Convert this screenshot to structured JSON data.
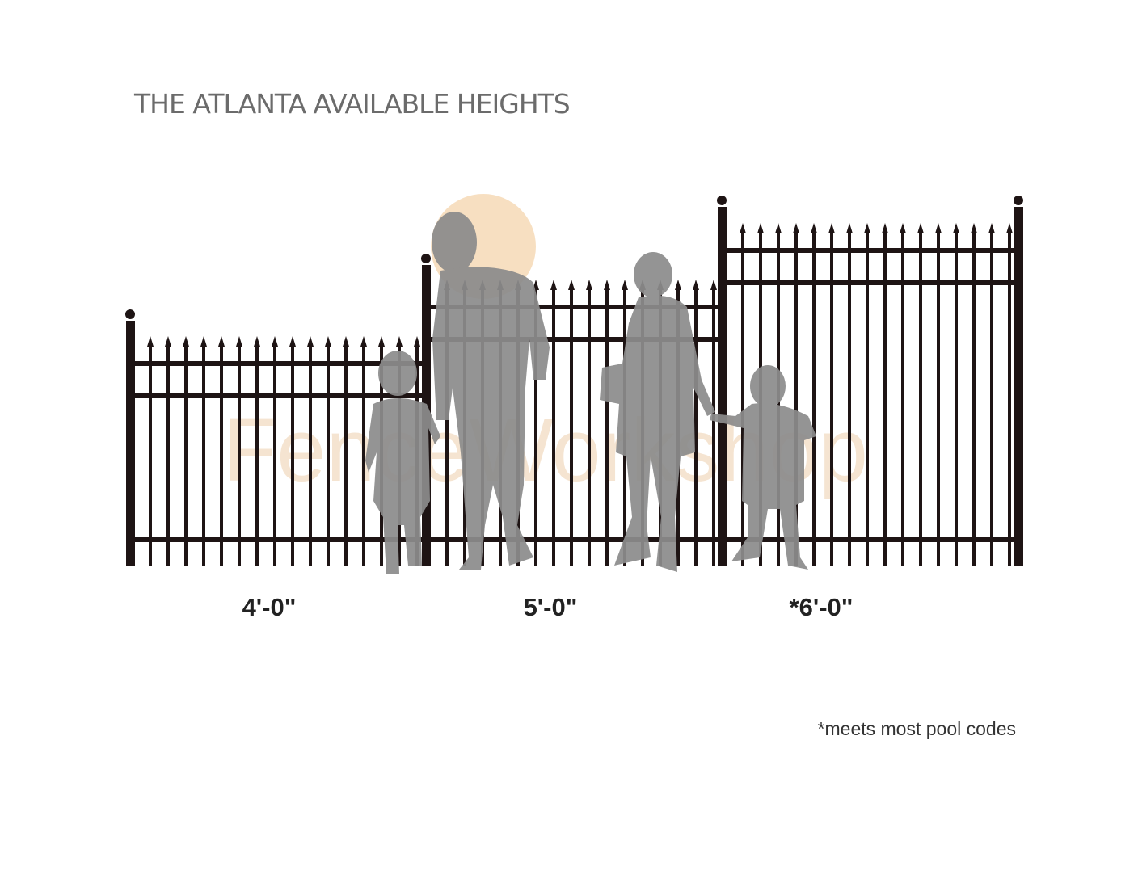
{
  "header": {
    "title": "THE ATLANTA AVAILABLE HEIGHTS"
  },
  "watermark": "FenceWorkshop",
  "heights": [
    {
      "label": "4'-0\""
    },
    {
      "label": "5'-0\""
    },
    {
      "label": "*6'-0\""
    }
  ],
  "footnote": "*meets most pool codes"
}
